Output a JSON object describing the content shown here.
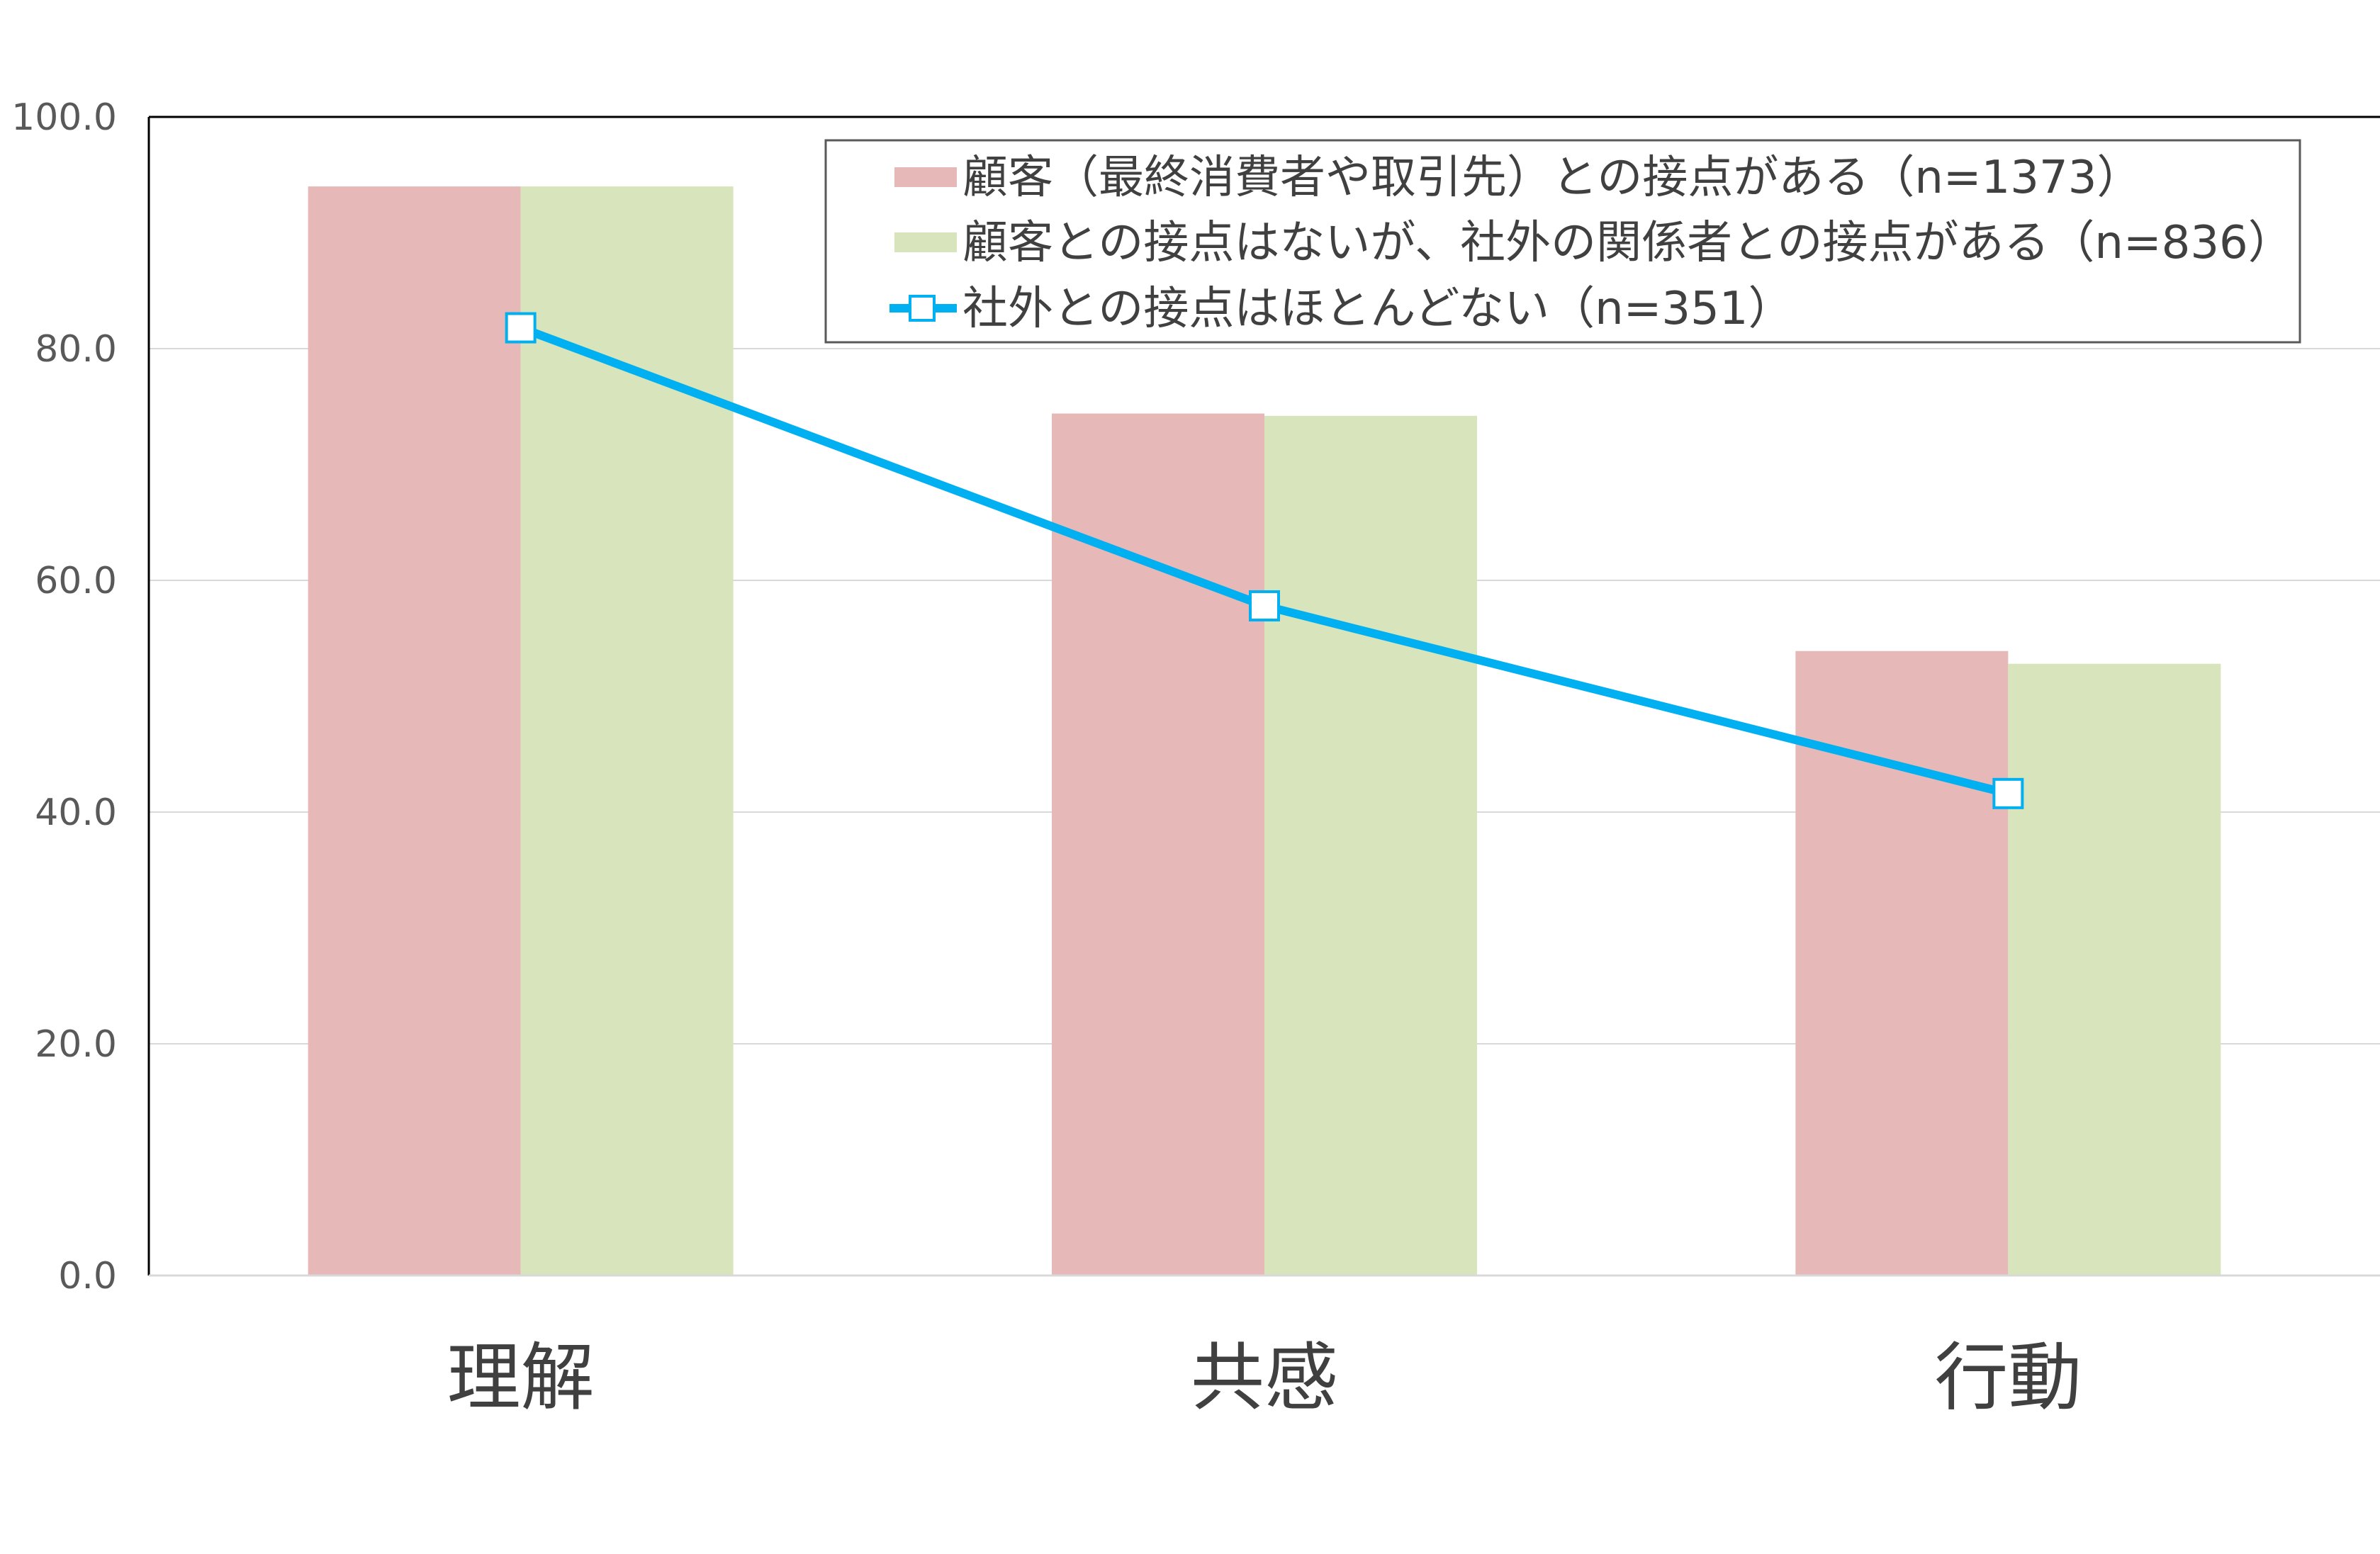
{
  "chart_data": {
    "type": "bar",
    "categories": [
      "理解",
      "共感",
      "行動"
    ],
    "ylim": [
      0,
      100
    ],
    "y_ticks": [
      "0.0",
      "20.0",
      "40.0",
      "60.0",
      "80.0",
      "100.0"
    ],
    "grid": true,
    "legend_position": "top-right",
    "series": [
      {
        "name": "顧客（最終消費者や取引先）との接点がある（n=1373）",
        "type": "bar",
        "color": "#e6b8b7",
        "values": [
          94.0,
          74.4,
          53.9
        ]
      },
      {
        "name": "顧客との接点はないが、社外の関係者との接点がある（n=836）",
        "type": "bar",
        "color": "#d8e4bc",
        "values": [
          94.0,
          74.2,
          52.8
        ]
      },
      {
        "name": "社外との接点はほとんどない（n=351）",
        "type": "line",
        "color": "#00b0f0",
        "marker": "square",
        "values": [
          81.8,
          57.8,
          41.6
        ]
      }
    ]
  }
}
